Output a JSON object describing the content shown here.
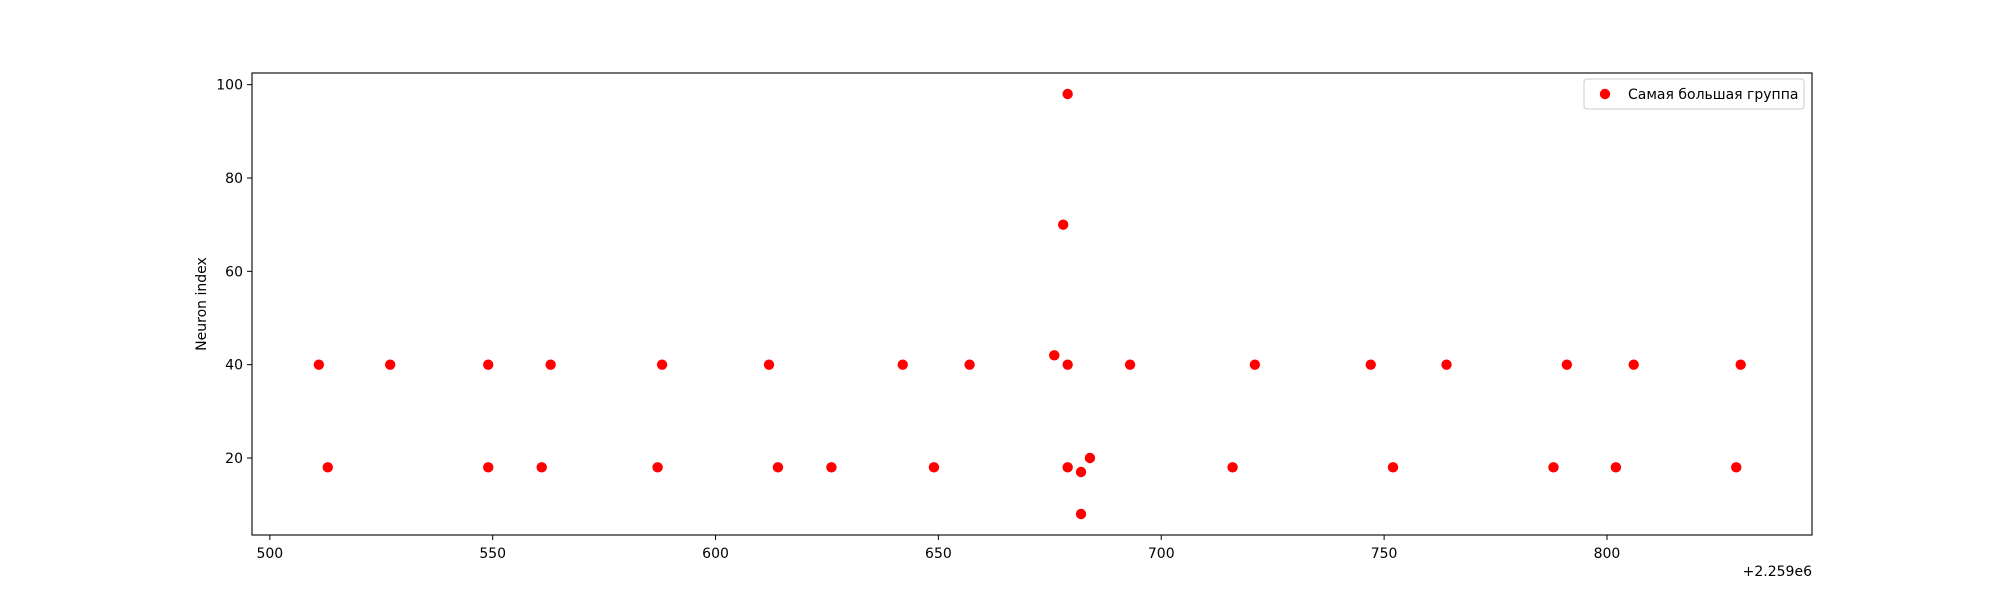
{
  "chart_data": {
    "type": "scatter",
    "title": "",
    "xlabel": "",
    "ylabel": "Neuron index",
    "x_offset_label": "+2.259e6",
    "xlim": [
      496,
      846
    ],
    "ylim": [
      3.5,
      102.5
    ],
    "x_ticks": [
      500,
      550,
      600,
      650,
      700,
      750,
      800
    ],
    "y_ticks": [
      20,
      40,
      60,
      80,
      100
    ],
    "grid": false,
    "legend_position": "top-right",
    "colors": {
      "series": "#ff0000"
    },
    "series": [
      {
        "name": "Самая большая группа",
        "points": [
          {
            "x": 511,
            "y": 40
          },
          {
            "x": 513,
            "y": 18
          },
          {
            "x": 527,
            "y": 40
          },
          {
            "x": 549,
            "y": 18
          },
          {
            "x": 549,
            "y": 40
          },
          {
            "x": 561,
            "y": 18
          },
          {
            "x": 563,
            "y": 40
          },
          {
            "x": 587,
            "y": 18
          },
          {
            "x": 588,
            "y": 40
          },
          {
            "x": 612,
            "y": 40
          },
          {
            "x": 614,
            "y": 18
          },
          {
            "x": 626,
            "y": 18
          },
          {
            "x": 642,
            "y": 40
          },
          {
            "x": 649,
            "y": 18
          },
          {
            "x": 657,
            "y": 40
          },
          {
            "x": 676,
            "y": 42
          },
          {
            "x": 678,
            "y": 70
          },
          {
            "x": 679,
            "y": 98
          },
          {
            "x": 679,
            "y": 40
          },
          {
            "x": 679,
            "y": 18
          },
          {
            "x": 682,
            "y": 17
          },
          {
            "x": 682,
            "y": 8
          },
          {
            "x": 684,
            "y": 20
          },
          {
            "x": 693,
            "y": 40
          },
          {
            "x": 716,
            "y": 18
          },
          {
            "x": 721,
            "y": 40
          },
          {
            "x": 747,
            "y": 40
          },
          {
            "x": 752,
            "y": 18
          },
          {
            "x": 764,
            "y": 40
          },
          {
            "x": 788,
            "y": 18
          },
          {
            "x": 791,
            "y": 40
          },
          {
            "x": 802,
            "y": 18
          },
          {
            "x": 806,
            "y": 40
          },
          {
            "x": 829,
            "y": 18
          },
          {
            "x": 830,
            "y": 40
          }
        ]
      }
    ]
  }
}
